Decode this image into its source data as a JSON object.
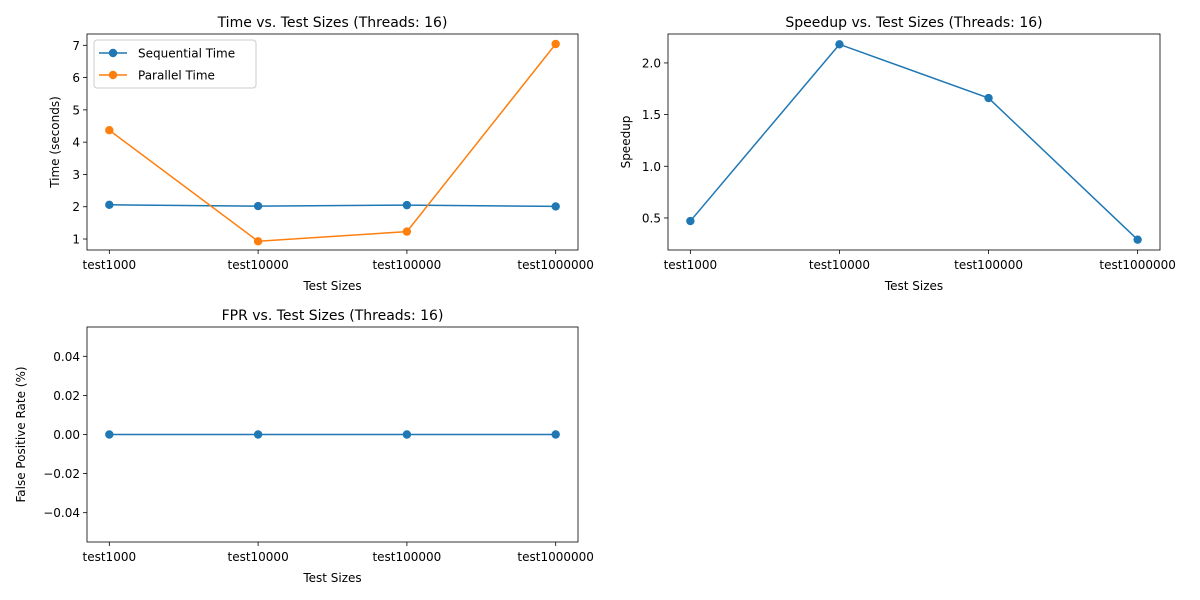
{
  "chart_data": [
    {
      "type": "line",
      "title": "Time vs. Test Sizes (Threads: 16)",
      "xlabel": "Test Sizes",
      "ylabel": "Time (seconds)",
      "categories": [
        "test1000",
        "test10000",
        "test100000",
        "test1000000"
      ],
      "ylim": [
        0.66,
        7.35
      ],
      "yticks": [
        1,
        2,
        3,
        4,
        5,
        6,
        7
      ],
      "ytick_labels": [
        "1",
        "2",
        "3",
        "4",
        "5",
        "6",
        "7"
      ],
      "legend": "top-left",
      "series": [
        {
          "name": "Sequential Time",
          "color": "#1f77b4",
          "values": [
            2.06,
            2.02,
            2.05,
            2.01
          ]
        },
        {
          "name": "Parallel Time",
          "color": "#ff7f0e",
          "values": [
            4.37,
            0.93,
            1.23,
            7.04
          ]
        }
      ]
    },
    {
      "type": "line",
      "title": "Speedup vs. Test Sizes (Threads: 16)",
      "xlabel": "Test Sizes",
      "ylabel": "Speedup",
      "categories": [
        "test1000",
        "test10000",
        "test100000",
        "test1000000"
      ],
      "ylim": [
        0.19,
        2.28
      ],
      "yticks": [
        0.5,
        1.0,
        1.5,
        2.0
      ],
      "ytick_labels": [
        "0.5",
        "1.0",
        "1.5",
        "2.0"
      ],
      "series": [
        {
          "color": "#1f77b4",
          "values": [
            0.47,
            2.18,
            1.66,
            0.29
          ]
        }
      ]
    },
    {
      "type": "line",
      "title": "FPR vs. Test Sizes (Threads: 16)",
      "xlabel": "Test Sizes",
      "ylabel": "False Positive Rate (%)",
      "categories": [
        "test1000",
        "test10000",
        "test100000",
        "test1000000"
      ],
      "ylim": [
        -0.055,
        0.055
      ],
      "yticks": [
        -0.04,
        -0.02,
        0.0,
        0.02,
        0.04
      ],
      "ytick_labels": [
        "−0.04",
        "−0.02",
        "0.00",
        "0.02",
        "0.04"
      ],
      "series": [
        {
          "color": "#1f77b4",
          "values": [
            0,
            0,
            0,
            0
          ]
        }
      ]
    }
  ]
}
